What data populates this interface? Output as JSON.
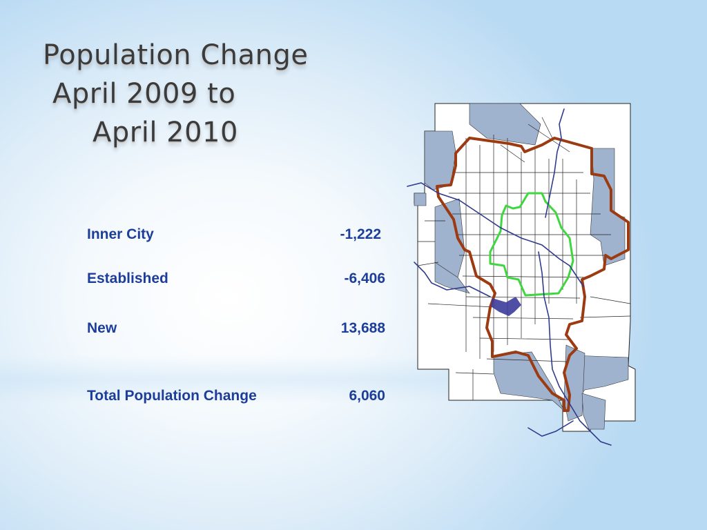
{
  "title": {
    "line1": "Population Change",
    "line2": "April 2009 to",
    "line3": "April 2010"
  },
  "stats": [
    {
      "label": "Inner City",
      "value": "-1,222"
    },
    {
      "label": "Established",
      "value": "-6,406"
    },
    {
      "label": "New",
      "value": "13,688"
    },
    {
      "label": "Total Population Change",
      "value": "6,060"
    }
  ],
  "map": {
    "colors": {
      "land": "#ffffff",
      "new_communities": "#9fb3cf",
      "established_boundary": "#9c3b12",
      "inner_city_boundary": "#3fd63f",
      "water": "#3b3b9a",
      "river": "#2e3a8c",
      "lines": "#222222"
    }
  }
}
